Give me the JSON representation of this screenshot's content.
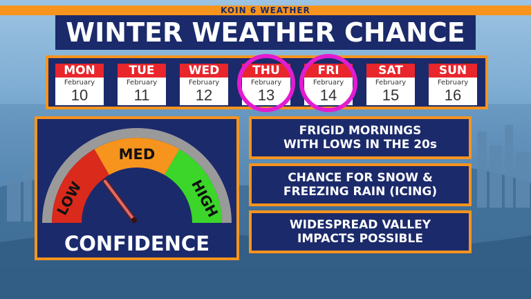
{
  "brand": {
    "text": "KOIN 6 WEATHER",
    "color": "#f7941d"
  },
  "title": "WINTER WEATHER CHANCE",
  "colors": {
    "navy": "#1b2a6b",
    "orange": "#f7941d",
    "red": "#e8262c",
    "highlight": "#e21cd0",
    "gauge_low": "#d92a1c",
    "gauge_med": "#f7941d",
    "gauge_high": "#3cd62a"
  },
  "calendar": [
    {
      "day": "MON",
      "month": "February",
      "date": "10",
      "highlighted": false
    },
    {
      "day": "TUE",
      "month": "February",
      "date": "11",
      "highlighted": false
    },
    {
      "day": "WED",
      "month": "February",
      "date": "12",
      "highlighted": false
    },
    {
      "day": "THU",
      "month": "February",
      "date": "13",
      "highlighted": true
    },
    {
      "day": "FRI",
      "month": "February",
      "date": "14",
      "highlighted": true
    },
    {
      "day": "SAT",
      "month": "February",
      "date": "15",
      "highlighted": false
    },
    {
      "day": "SUN",
      "month": "February",
      "date": "16",
      "highlighted": false
    }
  ],
  "gauge": {
    "labels": {
      "low": "LOW",
      "med": "MED",
      "high": "HIGH"
    },
    "caption": "CONFIDENCE",
    "level": "LOW"
  },
  "info_boxes": [
    {
      "lines": [
        "FRIGID MORNINGS",
        "WITH LOWS IN THE 20s"
      ]
    },
    {
      "lines": [
        "CHANCE FOR SNOW &",
        "FREEZING RAIN (ICING)"
      ]
    },
    {
      "lines": [
        "WIDESPREAD VALLEY",
        "IMPACTS POSSIBLE"
      ]
    }
  ]
}
